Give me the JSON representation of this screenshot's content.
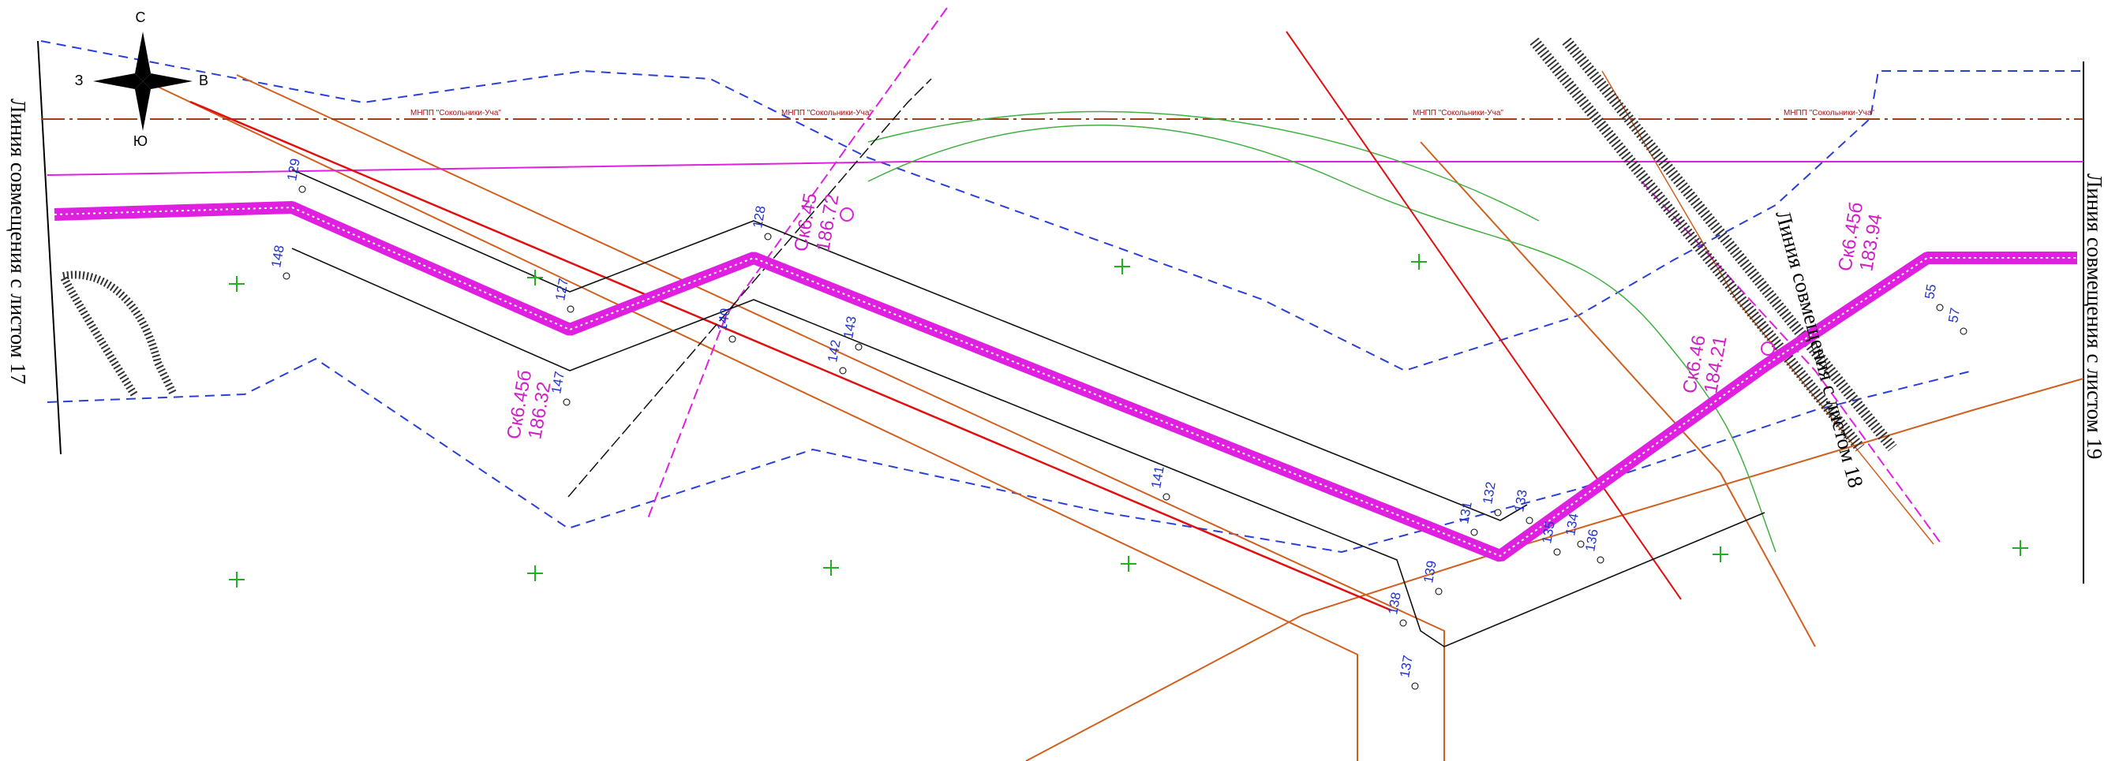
{
  "compass": {
    "north": "С",
    "south": "Ю",
    "west": "З",
    "east": "В"
  },
  "sheet_links": [
    "Линия совмещения с листом 17",
    "Линия совмещения с листом 19",
    "Линия совмещения с листом 18"
  ],
  "wells": [
    {
      "name": "Ск6.45",
      "elevation": "186.72"
    },
    {
      "name": "Ск6.45б",
      "elevation": "186.32"
    },
    {
      "name": "Ск6.46",
      "elevation": "184.21"
    },
    {
      "name": "Ск6.45б",
      "elevation": "183.94"
    }
  ],
  "pipeline_labels": [
    "МНПП \"Сокольники-Уча\"",
    "МНПП \"Сокольники-Уча\"",
    "МНПП \"Сокольники-Уча\"",
    "МНПП \"Сокольники-Уча\""
  ],
  "points": [
    "128",
    "129",
    "147",
    "148",
    "127",
    "140",
    "143",
    "142",
    "141",
    "131",
    "132",
    "133",
    "134",
    "135",
    "136",
    "137",
    "138",
    "139",
    "55",
    "57"
  ]
}
